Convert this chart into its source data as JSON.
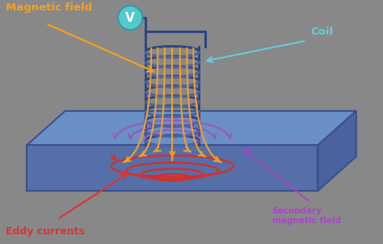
{
  "background_color": "#888888",
  "plate_front_color": "#5570a8",
  "plate_top_color": "#6a8fc4",
  "plate_right_color": "#4a62a0",
  "plate_edge_color": "#3a5090",
  "coil_back_color": "#2d4580",
  "coil_front_color": "#4a65a8",
  "magnetic_field_color": "#f5a020",
  "eddy_color": "#cc3333",
  "secondary_color": "#9955bb",
  "voltmeter_bg": "#55c8cc",
  "voltmeter_outline": "#3399aa",
  "coil_frame_color": "#2d4580",
  "label_magnetic": "Magnetic field",
  "label_coil": "Coil",
  "label_eddy": "Eddy currents",
  "label_secondary": "Secondary\nmagnetic field",
  "voltmeter_label": "V",
  "color_magnetic": "#f5a020",
  "color_coil": "#66ccdd",
  "color_eddy": "#dd3333",
  "color_secondary": "#aa44cc"
}
